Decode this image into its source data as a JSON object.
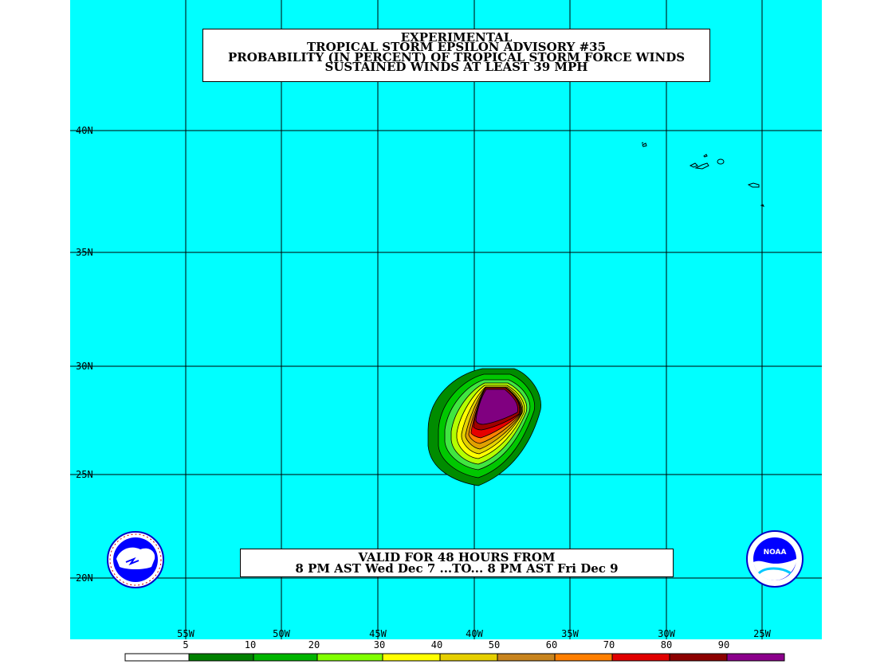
{
  "title": {
    "line1": "EXPERIMENTAL",
    "line2": "TROPICAL STORM EPSILON ADVISORY #35",
    "line3": "PROBABILITY (IN PERCENT) OF TROPICAL STORM FORCE WINDS",
    "line4": "SUSTAINED WINDS AT LEAST 39 MPH"
  },
  "valid": {
    "line1": "VALID FOR 48 HOURS FROM",
    "line2": "8 PM AST Wed Dec 7 ...TO... 8 PM AST Fri Dec 9"
  },
  "lat_labels": [
    "40N",
    "35N",
    "30N",
    "25N",
    "20N"
  ],
  "lon_labels": [
    "55W",
    "50W",
    "45W",
    "40W",
    "35W",
    "30W",
    "25W"
  ],
  "legend": {
    "labels": [
      "5",
      "10",
      "20",
      "30",
      "40",
      "50",
      "60",
      "70",
      "80",
      "90"
    ],
    "colors": [
      "#ffffff",
      "#008000",
      "#00b400",
      "#00e600",
      "#80ff00",
      "#ffff00",
      "#e6cf00",
      "#c8841e",
      "#ff7f00",
      "#e10000",
      "#8c0000",
      "#8b008b"
    ]
  },
  "colors": {
    "ocean": "#00ffff",
    "grid": "#000000",
    "probability_levels": [
      "#008c00",
      "#00c800",
      "#40e640",
      "#b4ff00",
      "#ffff00",
      "#e6d200",
      "#e0a000",
      "#ff8000",
      "#e60000",
      "#a00000",
      "#800080"
    ]
  },
  "logos": {
    "left": "NATIONAL WEATHER SERVICE",
    "right": "NOAA"
  }
}
